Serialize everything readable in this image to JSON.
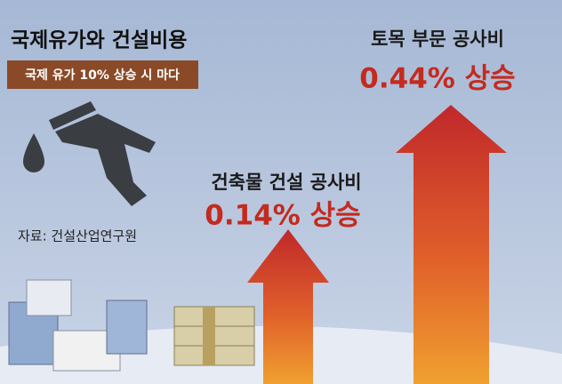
{
  "header": {
    "title": "국제유가와 건설비용",
    "subtitle": "국제 유가 10% 상승 시 마다"
  },
  "source": "자료: 건설산업연구원",
  "items": [
    {
      "label": "건축물 건설 공사비",
      "value_text": "0.14% 상승"
    },
    {
      "label": "토목 부문 공사비",
      "value_text": "0.44% 상승"
    }
  ]
}
